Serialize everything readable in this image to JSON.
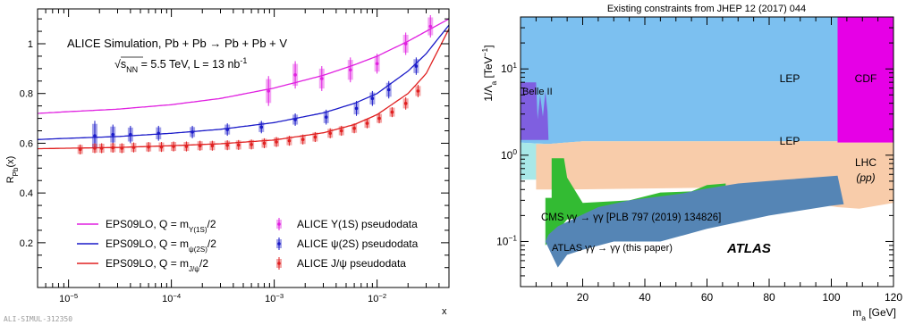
{
  "footer_id": "ALI-SIMUL-312350",
  "colors": {
    "upsilon": "#e020e0",
    "psi2s": "#1a1ac8",
    "jpsi": "#e02020",
    "lep_blue": "#7cc0f0",
    "lep_cyan": "#a8e8e8",
    "cdf": "#e600e6",
    "lhc": "#f8ccaa",
    "cms": "#33bb33",
    "atlas": "#5585b5",
    "belle": "#7f5fe0"
  },
  "chart_data": [
    {
      "type": "scatter",
      "title_lines": [
        "ALICE Simulation, Pb + Pb → Pb + Pb + V"
      ],
      "subtitle_prefix": "√",
      "subtitle_snn": "s",
      "subtitle_snn_sub": "NN",
      "subtitle_rest": " = 5.5 TeV, L = 13 nb",
      "subtitle_sup": "-1",
      "xlabel": "x",
      "ylabel": "R",
      "ylabel_sub": "Pb",
      "ylabel_tail": "(x)",
      "xscale": "log",
      "xlim": [
        5e-06,
        0.05
      ],
      "ylim": [
        0.02,
        1.14
      ],
      "x_ticks": [
        {
          "v": 1e-05,
          "base": "10",
          "exp": "−5"
        },
        {
          "v": 0.0001,
          "base": "10",
          "exp": "−4"
        },
        {
          "v": 0.001,
          "base": "10",
          "exp": "−3"
        },
        {
          "v": 0.01,
          "base": "10",
          "exp": "−2"
        }
      ],
      "y_ticks": [
        0.2,
        0.4,
        0.6,
        0.8,
        1
      ],
      "y_tick_labels": [
        "0.2",
        "0.4",
        "0.6",
        "0.8",
        "1"
      ],
      "legend": [
        {
          "key": "upsilon",
          "kind": "line",
          "text": "EPS09LO, Q = m",
          "sub": "Υ(1S)",
          "tail": "/2"
        },
        {
          "key": "psi2s",
          "kind": "line",
          "text": "EPS09LO, Q = m",
          "sub": "ψ(2S)",
          "tail": "/2"
        },
        {
          "key": "jpsi",
          "kind": "line",
          "text": "EPS09LO, Q = m",
          "sub": "J/ψ",
          "tail": "/2"
        },
        {
          "key": "upsilon",
          "kind": "marker",
          "text": "ALICE Υ(1S) pseudodata"
        },
        {
          "key": "psi2s",
          "kind": "marker",
          "text": "ALICE ψ(2S) pseudodata"
        },
        {
          "key": "jpsi",
          "kind": "marker",
          "text": "ALICE J/ψ pseudodata"
        }
      ],
      "curves": [
        {
          "key": "upsilon",
          "x": [
            5e-06,
            1e-05,
            3e-05,
            0.0001,
            0.0003,
            0.001,
            0.003,
            0.006,
            0.01,
            0.02,
            0.03,
            0.05
          ],
          "y": [
            0.72,
            0.727,
            0.737,
            0.755,
            0.78,
            0.822,
            0.873,
            0.915,
            0.95,
            1.01,
            1.05,
            1.1
          ]
        },
        {
          "key": "psi2s",
          "x": [
            5e-06,
            1e-05,
            3e-05,
            0.0001,
            0.0003,
            0.001,
            0.003,
            0.006,
            0.01,
            0.02,
            0.03,
            0.05
          ],
          "y": [
            0.615,
            0.62,
            0.627,
            0.64,
            0.656,
            0.683,
            0.722,
            0.76,
            0.8,
            0.89,
            0.96,
            1.075
          ]
        },
        {
          "key": "jpsi",
          "x": [
            5e-06,
            1e-05,
            3e-05,
            0.0001,
            0.0003,
            0.001,
            0.003,
            0.006,
            0.01,
            0.02,
            0.03,
            0.05
          ],
          "y": [
            0.578,
            0.58,
            0.583,
            0.59,
            0.598,
            0.613,
            0.642,
            0.675,
            0.715,
            0.8,
            0.88,
            1.06
          ]
        }
      ],
      "series": [
        {
          "name": "ALICE Υ(1S) pseudodata",
          "key": "upsilon",
          "x": [
            0.00088,
            0.0016,
            0.0029,
            0.0055,
            0.01,
            0.019,
            0.033
          ],
          "y": [
            0.81,
            0.875,
            0.86,
            0.895,
            0.92,
            1.0,
            1.07
          ],
          "err": [
            0.06,
            0.055,
            0.05,
            0.05,
            0.04,
            0.045,
            0.045
          ]
        },
        {
          "name": "ALICE ψ(2S) pseudodata",
          "key": "psi2s",
          "x": [
            1.8e-05,
            2.7e-05,
            4e-05,
            7.5e-05,
            0.00016,
            0.00035,
            0.00075,
            0.0016,
            0.0032,
            0.0063,
            0.009,
            0.013,
            0.024
          ],
          "y": [
            0.63,
            0.635,
            0.635,
            0.64,
            0.645,
            0.655,
            0.665,
            0.695,
            0.705,
            0.74,
            0.78,
            0.815,
            0.91
          ],
          "err": [
            0.06,
            0.04,
            0.035,
            0.03,
            0.025,
            0.025,
            0.025,
            0.025,
            0.03,
            0.03,
            0.03,
            0.035,
            0.035
          ]
        },
        {
          "name": "ALICE J/ψ pseudodata",
          "key": "jpsi",
          "x": [
            1.3e-05,
            1.8e-05,
            2.1e-05,
            2.7e-05,
            3.3e-05,
            4.3e-05,
            6e-05,
            8e-05,
            0.000105,
            0.00014,
            0.00019,
            0.00025,
            0.00035,
            0.00045,
            0.0006,
            0.0008,
            0.00105,
            0.0014,
            0.0019,
            0.0025,
            0.0035,
            0.0045,
            0.006,
            0.008,
            0.0105,
            0.014,
            0.019,
            0.025
          ],
          "y": [
            0.575,
            0.58,
            0.58,
            0.582,
            0.58,
            0.583,
            0.585,
            0.585,
            0.587,
            0.587,
            0.59,
            0.59,
            0.592,
            0.593,
            0.595,
            0.6,
            0.605,
            0.61,
            0.615,
            0.625,
            0.64,
            0.65,
            0.66,
            0.68,
            0.7,
            0.725,
            0.76,
            0.81
          ],
          "err": [
            0.02,
            0.02,
            0.02,
            0.02,
            0.02,
            0.02,
            0.02,
            0.02,
            0.02,
            0.02,
            0.02,
            0.02,
            0.02,
            0.02,
            0.02,
            0.02,
            0.02,
            0.02,
            0.02,
            0.02,
            0.02,
            0.02,
            0.02,
            0.02,
            0.02,
            0.02,
            0.025,
            0.025
          ]
        }
      ]
    },
    {
      "type": "area",
      "title": "Existing constraints from JHEP 12 (2017) 044",
      "xlabel_pre": "m",
      "xlabel_sub": "a",
      "xlabel_post": "  [GeV]",
      "ylabel_pre": "1/Λ",
      "ylabel_sub": "a",
      "ylabel_post": "  [TeV",
      "ylabel_sup": "−1",
      "ylabel_close": "]",
      "yscale": "log",
      "xlim": [
        0,
        120
      ],
      "ylim": [
        0.03,
        40
      ],
      "x_ticks": [
        20,
        40,
        60,
        80,
        100,
        120
      ],
      "x_tick_labels": [
        "20",
        "40",
        "60",
        "80",
        "100",
        "120"
      ],
      "y_ticks": [
        {
          "v": 0.1,
          "base": "10",
          "exp": "−1"
        },
        {
          "v": 1,
          "base": "10",
          "exp": "0"
        },
        {
          "v": 10,
          "base": "10",
          "exp": "1"
        }
      ],
      "labels": {
        "lep_top": "LEP",
        "lep_mid": "LEP",
        "cdf": "CDF",
        "lhc_line1": "LHC",
        "lhc_line2": "(pp)",
        "belle": "Belle II",
        "cms": "CMS γγ → γγ [PLB 797 (2019) 134826]",
        "atlas": "ATLAS γγ → γγ (this paper)",
        "atlas_logo": "ATLAS"
      },
      "regions": [
        {
          "name": "LEP (upper)",
          "key": "lep_blue",
          "points": [
            [
              0,
              40
            ],
            [
              102,
              40
            ],
            [
              102,
              1.45
            ],
            [
              20,
              1.45
            ],
            [
              9,
              1.35
            ],
            [
              0,
              1.4
            ]
          ]
        },
        {
          "name": "LEP (lower)",
          "key": "lep_cyan",
          "points": [
            [
              0,
              1.4
            ],
            [
              9,
              1.35
            ],
            [
              20,
              1.45
            ],
            [
              102,
              1.45
            ],
            [
              102,
              0.52
            ],
            [
              0,
              0.52
            ]
          ]
        },
        {
          "name": "CDF",
          "key": "cdf",
          "points": [
            [
              102,
              40
            ],
            [
              120,
              40
            ],
            [
              120,
              1.4
            ],
            [
              102,
              1.4
            ]
          ]
        },
        {
          "name": "LHC (pp)",
          "key": "lhc",
          "points": [
            [
              102,
              1.4
            ],
            [
              120,
              1.4
            ],
            [
              120,
              0.28
            ],
            [
              109,
              0.24
            ],
            [
              102,
              0.25
            ],
            [
              60,
              0.42
            ],
            [
              15,
              0.4
            ],
            [
              5,
              0.4
            ],
            [
              5,
              1.35
            ],
            [
              9,
              1.35
            ],
            [
              20,
              1.45
            ],
            [
              102,
              1.45
            ]
          ]
        },
        {
          "name": "CMS",
          "key": "cms",
          "points": [
            [
              10,
              0.92
            ],
            [
              14,
              0.92
            ],
            [
              15,
              0.55
            ],
            [
              20,
              0.28
            ],
            [
              35,
              0.3
            ],
            [
              45,
              0.37
            ],
            [
              55,
              0.38
            ],
            [
              60,
              0.45
            ],
            [
              66,
              0.47
            ],
            [
              66,
              0.27
            ],
            [
              50,
              0.24
            ],
            [
              40,
              0.22
            ],
            [
              25,
              0.2
            ],
            [
              15,
              0.18
            ],
            [
              10,
              0.11
            ],
            [
              8,
              0.09
            ],
            [
              8,
              0.32
            ],
            [
              10,
              0.32
            ]
          ]
        },
        {
          "name": "ATLAS",
          "key": "atlas",
          "points": [
            [
              8,
              0.1
            ],
            [
              12,
              0.05
            ],
            [
              15,
              0.07
            ],
            [
              20,
              0.08
            ],
            [
              30,
              0.1
            ],
            [
              45,
              0.1
            ],
            [
              60,
              0.14
            ],
            [
              80,
              0.2
            ],
            [
              100,
              0.26
            ],
            [
              104,
              0.27
            ],
            [
              102,
              0.58
            ],
            [
              85,
              0.52
            ],
            [
              70,
              0.47
            ],
            [
              58,
              0.4
            ],
            [
              52,
              0.36
            ],
            [
              44,
              0.33
            ],
            [
              35,
              0.3
            ],
            [
              25,
              0.25
            ],
            [
              18,
              0.19
            ],
            [
              12,
              0.15
            ],
            [
              9,
              0.12
            ]
          ]
        },
        {
          "name": "Belle II",
          "key": "belle",
          "points": [
            [
              0,
              7
            ],
            [
              5,
              7
            ],
            [
              5.5,
              2.6
            ],
            [
              6.3,
              5
            ],
            [
              7.2,
              2.8
            ],
            [
              8,
              5.5
            ],
            [
              8.7,
              3.2
            ],
            [
              9,
              1.5
            ],
            [
              0,
              1.5
            ]
          ]
        }
      ]
    }
  ]
}
